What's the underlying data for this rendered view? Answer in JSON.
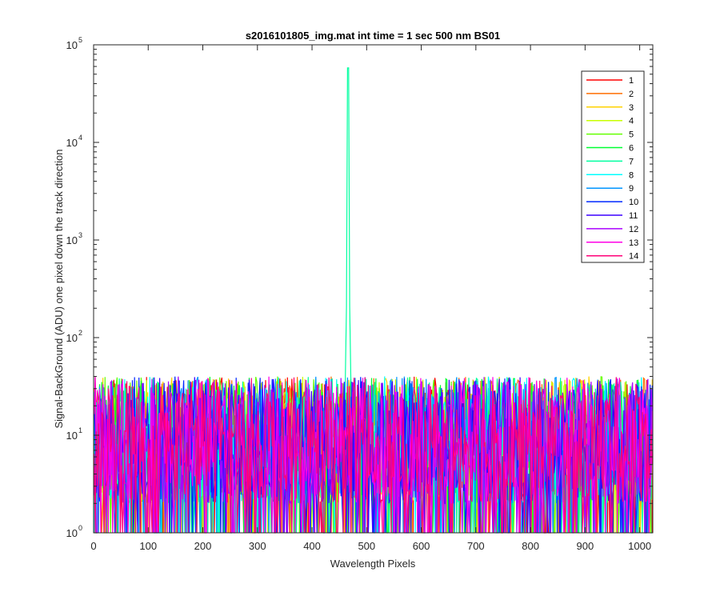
{
  "chart_data": {
    "type": "line",
    "title": "s2016101805_img.mat int time = 1 sec  500 nm BS01",
    "xlabel": "Wavelength Pixels",
    "ylabel": "Signal-BackGround (ADU) one pixel down the track direction",
    "xlim": [
      0,
      1024
    ],
    "ylim": [
      1,
      100000
    ],
    "yscale": "log",
    "x_ticks": [
      0,
      100,
      200,
      300,
      400,
      500,
      600,
      700,
      800,
      900,
      1000
    ],
    "y_ticks": [
      {
        "base": "10",
        "exp": "0",
        "value": 1
      },
      {
        "base": "10",
        "exp": "1",
        "value": 10
      },
      {
        "base": "10",
        "exp": "2",
        "value": 100
      },
      {
        "base": "10",
        "exp": "3",
        "value": 1000
      },
      {
        "base": "10",
        "exp": "4",
        "value": 10000
      },
      {
        "base": "10",
        "exp": "5",
        "value": 100000
      }
    ],
    "grid": false,
    "legend_position": "top-right",
    "noise_floor": {
      "min": 1,
      "max": 40,
      "description_values_typical": 10
    },
    "peak": {
      "x": 466,
      "max_value": 58000,
      "series": "7"
    },
    "secondary_peak": {
      "x": 466,
      "value": 210
    },
    "series": [
      {
        "name": "1",
        "color": "#ff0000"
      },
      {
        "name": "2",
        "color": "#ff6e00"
      },
      {
        "name": "3",
        "color": "#ffd200"
      },
      {
        "name": "4",
        "color": "#c8ff00"
      },
      {
        "name": "5",
        "color": "#64ff00"
      },
      {
        "name": "6",
        "color": "#00ff32"
      },
      {
        "name": "7",
        "color": "#00ffa0"
      },
      {
        "name": "8",
        "color": "#00ffff"
      },
      {
        "name": "9",
        "color": "#0096ff"
      },
      {
        "name": "10",
        "color": "#0028ff"
      },
      {
        "name": "11",
        "color": "#3c00ff"
      },
      {
        "name": "12",
        "color": "#aa00ff"
      },
      {
        "name": "13",
        "color": "#ff00e6"
      },
      {
        "name": "14",
        "color": "#ff0078"
      }
    ]
  }
}
